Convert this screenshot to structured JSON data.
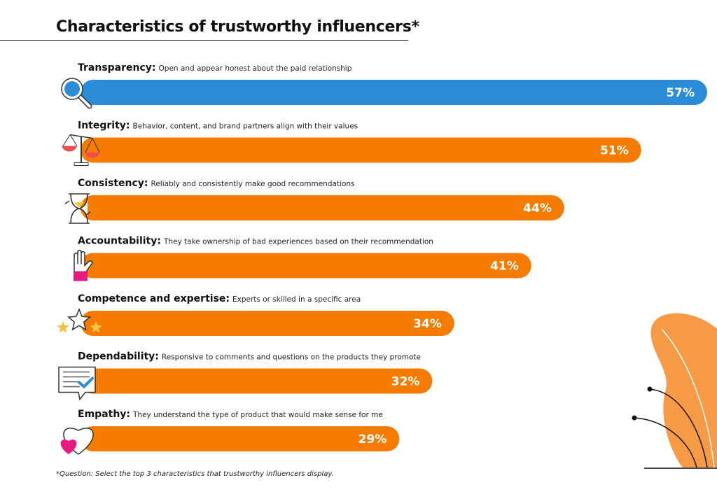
{
  "chart_data": {
    "type": "bar",
    "orientation": "horizontal",
    "title": "Characteristics of trustworthy influencers*",
    "categories": [
      "Transparency",
      "Integrity",
      "Consistency",
      "Accountability",
      "Competence and expertise",
      "Dependability",
      "Empathy"
    ],
    "descriptions": [
      "Open and appear honest about the paid relationship",
      "Behavior, content, and brand partners align with their values",
      "Reliably and consistently make good recommendations",
      "They take ownership of bad experiences based on their recommendation",
      "Experts or skilled in a specific area",
      "Responsive to comments and questions on the products they promote",
      "They understand the type of product that would make sense for me"
    ],
    "values": [
      57,
      51,
      44,
      41,
      34,
      32,
      29
    ],
    "value_labels": [
      "57%",
      "51%",
      "44%",
      "41%",
      "34%",
      "32%",
      "29%"
    ],
    "icons": [
      "magnifier-icon",
      "scales-icon",
      "hourglass-icon",
      "raised-hand-icon",
      "stars-icon",
      "checked-message-icon",
      "hearts-icon"
    ],
    "colors": [
      "#2b8cd8",
      "#f57c00",
      "#f57c00",
      "#f57c00",
      "#f57c00",
      "#f57c00",
      "#f57c00"
    ],
    "xlabel": "",
    "ylabel": "",
    "xlim": [
      0,
      57
    ],
    "grid": false,
    "legend": "none"
  },
  "footnote": "*Question: Select the top 3 characteristics that trustworthy influencers display."
}
